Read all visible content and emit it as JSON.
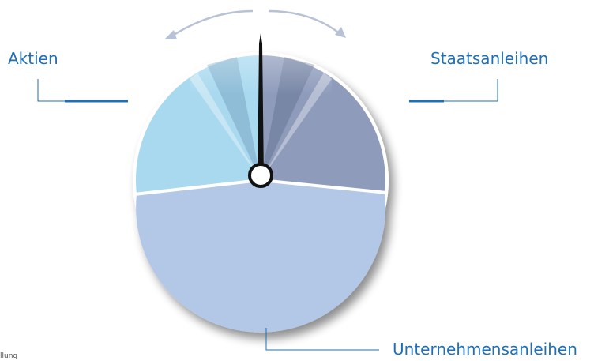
{
  "labels": {
    "left": "Aktien",
    "right": "Staatsanleihen",
    "bottom": "Unternehmensanleihen"
  },
  "footnote": "llung"
}
